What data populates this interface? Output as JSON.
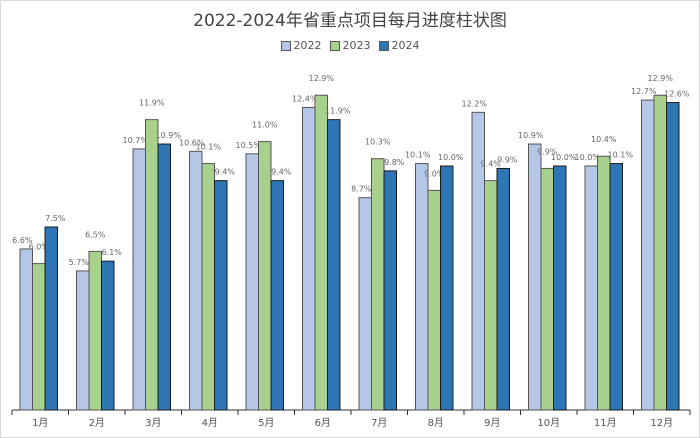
{
  "chart_data": {
    "type": "bar",
    "title": "2022-2024年省重点项目每月进度柱状图",
    "categories": [
      "1月",
      "2月",
      "3月",
      "4月",
      "5月",
      "6月",
      "7月",
      "8月",
      "9月",
      "10月",
      "11月",
      "12月"
    ],
    "series": [
      {
        "name": "2022",
        "color": "#b4c7e7",
        "values": [
          6.6,
          5.7,
          10.7,
          10.6,
          10.5,
          12.4,
          8.7,
          10.1,
          12.2,
          10.9,
          10.0,
          12.7
        ]
      },
      {
        "name": "2023",
        "color": "#a9d18e",
        "values": [
          6.0,
          6.5,
          11.9,
          10.1,
          11.0,
          12.9,
          10.3,
          9.0,
          9.4,
          9.9,
          10.4,
          12.9
        ]
      },
      {
        "name": "2024",
        "color": "#2e75b6",
        "values": [
          7.5,
          6.1,
          10.9,
          9.4,
          9.4,
          11.9,
          9.8,
          10.0,
          9.9,
          10.0,
          10.1,
          12.6
        ]
      }
    ],
    "value_suffix": "%",
    "ylim": [
      0,
      13.5
    ],
    "grid": false,
    "legend": "top-center"
  }
}
